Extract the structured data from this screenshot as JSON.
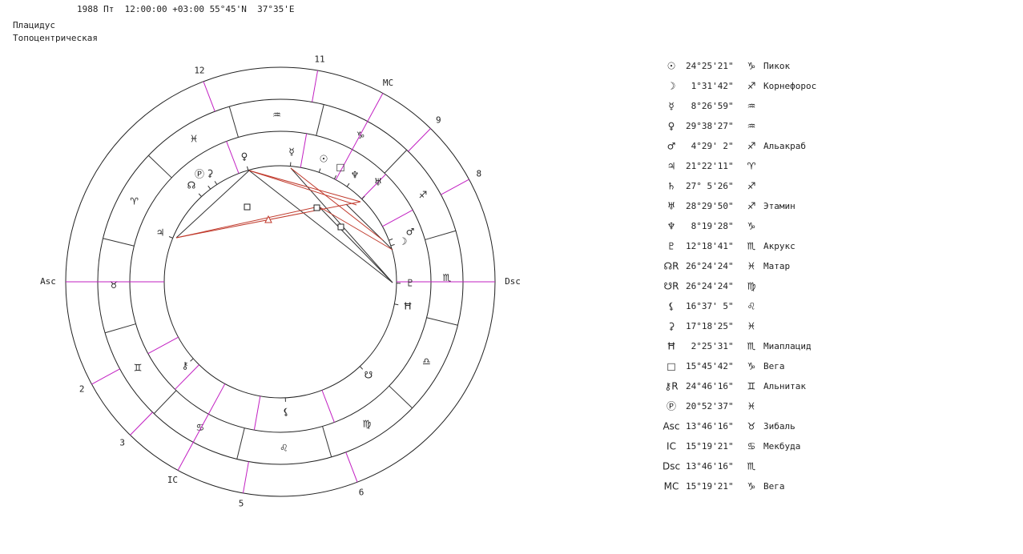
{
  "header": {
    "line": "1988 Пт  12:00:00 +03:00 55°45'N  37°35'E",
    "system": "Плацидус",
    "kind": "Топоцентрическая"
  },
  "wheel": {
    "houses": [
      "Asc",
      "2",
      "3",
      "IC",
      "5",
      "6",
      "Dsc",
      "8",
      "9",
      "MC",
      "11",
      "12"
    ],
    "signs": [
      "♈",
      "♉",
      "♊",
      "♋",
      "♌",
      "♍",
      "♎",
      "♏",
      "♐",
      "♑",
      "♒",
      "♓"
    ],
    "planets": [
      "♀",
      "☿",
      "☉",
      "□",
      "♆",
      "♅",
      "♂",
      "☽",
      "♇",
      "Ħ",
      "☋",
      "⚸",
      "⚷",
      "♃",
      "☊",
      "Ⓟ",
      "⚳"
    ]
  },
  "table": {
    "rows": [
      {
        "glyph": "☉",
        "pos": "24°25'21\"",
        "sign": "♑",
        "star": "Пикок"
      },
      {
        "glyph": "☽",
        "pos": " 1°31'42\"",
        "sign": "♐",
        "star": "Корнефорос"
      },
      {
        "glyph": "☿",
        "pos": " 8°26'59\"",
        "sign": "♒"
      },
      {
        "glyph": "♀",
        "pos": "29°38'27\"",
        "sign": "♒"
      },
      {
        "glyph": "♂",
        "pos": " 4°29' 2\"",
        "sign": "♐",
        "star": "Альакраб"
      },
      {
        "glyph": "♃",
        "pos": "21°22'11\"",
        "sign": "♈"
      },
      {
        "glyph": "♄",
        "pos": "27° 5'26\"",
        "sign": "♐"
      },
      {
        "glyph": "♅",
        "pos": "28°29'50\"",
        "sign": "♐",
        "star": "Этамин"
      },
      {
        "glyph": "♆",
        "pos": " 8°19'28\"",
        "sign": "♑"
      },
      {
        "glyph": "♇",
        "pos": "12°18'41\"",
        "sign": "♏",
        "star": "Акрукс"
      },
      {
        "glyph": "☊R",
        "pos": "26°24'24\"",
        "sign": "♓",
        "star": "Матар"
      },
      {
        "glyph": "☋R",
        "pos": "26°24'24\"",
        "sign": "♍"
      },
      {
        "glyph": "⚸",
        "pos": "16°37' 5\"",
        "sign": "♌"
      },
      {
        "glyph": "⚳",
        "pos": "17°18'25\"",
        "sign": "♓"
      },
      {
        "glyph": "Ħ",
        "pos": " 2°25'31\"",
        "sign": "♏",
        "star": "Миаплацид"
      },
      {
        "glyph": "□",
        "pos": "15°45'42\"",
        "sign": "♑",
        "star": "Вега"
      },
      {
        "glyph": "⚷R",
        "pos": "24°46'16\"",
        "sign": "♊",
        "star": "Альнитак"
      },
      {
        "glyph": "Ⓟ",
        "pos": "20°52'37\"",
        "sign": "♓"
      },
      {
        "glyph": "Asc",
        "pos": "13°46'16\"",
        "sign": "♉",
        "star": "Зибаль"
      },
      {
        "glyph": "IC",
        "pos": "15°19'21\"",
        "sign": "♋",
        "star": "Мекбуда"
      },
      {
        "glyph": "Dsc",
        "pos": "13°46'16\"",
        "sign": "♏"
      },
      {
        "glyph": "MC",
        "pos": "15°19'21\"",
        "sign": "♑",
        "star": "Вега"
      }
    ]
  }
}
